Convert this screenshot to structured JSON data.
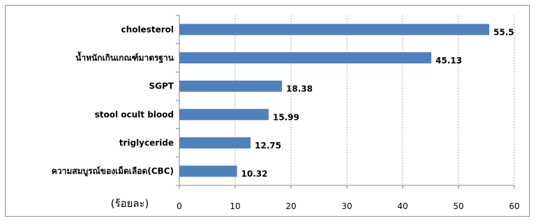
{
  "chart_data": {
    "type": "bar",
    "orientation": "horizontal",
    "categories": [
      "cholesterol",
      "น้ำหนักเกินเกณฑ์มาตรฐาน",
      "SGPT",
      "stool ocult blood",
      "triglyceride",
      "ความสมบูรณ์ของเม็ดเลือด(CBC)"
    ],
    "values": [
      55.5,
      45.13,
      18.38,
      15.99,
      12.75,
      10.32
    ],
    "value_labels": [
      "55.5",
      "45.13",
      "18.38",
      "15.99",
      "12.75",
      "10.32"
    ],
    "xlim": [
      0,
      60
    ],
    "xticks": [
      "0",
      "10",
      "20",
      "30",
      "40",
      "50",
      "60"
    ],
    "unit_label": "(ร้อยละ)",
    "grid": "vertical dashed",
    "bar_color": "#4f81bd"
  }
}
